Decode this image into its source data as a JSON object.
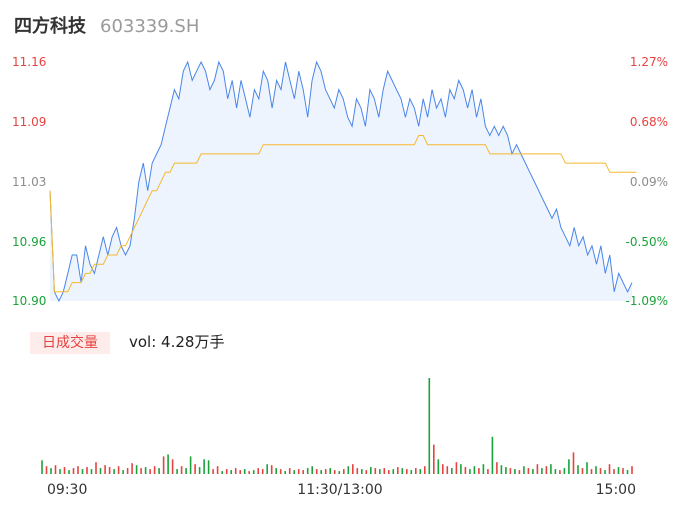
{
  "header": {
    "name": "四方科技",
    "code": "603339.SH"
  },
  "volume_panel": {
    "tag": "日成交量",
    "summary": "vol: 4.28万手"
  },
  "colors": {
    "price": "#4a86e8",
    "avg": "#f5b82e",
    "up": "#e64340",
    "down": "#1aa33a",
    "flat": "#8c8c8c"
  },
  "chart_data": {
    "type": "line",
    "x_ticks": [
      "09:30",
      "11:30/13:00",
      "15:00"
    ],
    "price_axis": {
      "ticks": [
        "11.16",
        "11.09",
        "11.03",
        "10.96",
        "10.90"
      ],
      "ylim": [
        10.9,
        11.16
      ]
    },
    "pct_axis": {
      "ticks": [
        "1.27%",
        "0.68%",
        "0.09%",
        "-0.50%",
        "-1.09%"
      ]
    },
    "series": [
      {
        "values": [
          11.02,
          10.91,
          10.9,
          10.91,
          10.93,
          10.95,
          10.95,
          10.92,
          10.96,
          10.94,
          10.93,
          10.95,
          10.97,
          10.95,
          10.97,
          10.98,
          10.96,
          10.95,
          10.96,
          10.99,
          11.03,
          11.05,
          11.02,
          11.05,
          11.06,
          11.07,
          11.09,
          11.11,
          11.13,
          11.12,
          11.15,
          11.16,
          11.14,
          11.15,
          11.16,
          11.15,
          11.13,
          11.14,
          11.16,
          11.15,
          11.12,
          11.14,
          11.11,
          11.14,
          11.12,
          11.1,
          11.13,
          11.12,
          11.15,
          11.14,
          11.11,
          11.14,
          11.13,
          11.16,
          11.14,
          11.12,
          11.15,
          11.13,
          11.1,
          11.14,
          11.16,
          11.15,
          11.13,
          11.12,
          11.11,
          11.13,
          11.12,
          11.1,
          11.09,
          11.12,
          11.11,
          11.09,
          11.13,
          11.12,
          11.1,
          11.13,
          11.15,
          11.14,
          11.13,
          11.12,
          11.1,
          11.12,
          11.11,
          11.09,
          11.12,
          11.1,
          11.13,
          11.11,
          11.12,
          11.1,
          11.13,
          11.12,
          11.14,
          11.13,
          11.11,
          11.13,
          11.1,
          11.12,
          11.09,
          11.08,
          11.09,
          11.08,
          11.09,
          11.08,
          11.06,
          11.07,
          11.06,
          11.05,
          11.04,
          11.03,
          11.02,
          11.01,
          11.0,
          10.99,
          11.0,
          10.98,
          10.97,
          10.96,
          10.98,
          10.96,
          10.97,
          10.95,
          10.96,
          10.94,
          10.96,
          10.93,
          10.95,
          10.91,
          10.93,
          10.92,
          10.91,
          10.92
        ],
        "name": ""
      },
      {
        "values": [
          11.02,
          10.91,
          10.91,
          10.91,
          10.91,
          10.92,
          10.92,
          10.92,
          10.93,
          10.93,
          10.94,
          10.94,
          10.94,
          10.95,
          10.95,
          10.95,
          10.96,
          10.96,
          10.97,
          10.98,
          10.99,
          11.0,
          11.01,
          11.02,
          11.02,
          11.03,
          11.04,
          11.04,
          11.05,
          11.05,
          11.05,
          11.05,
          11.05,
          11.05,
          11.06,
          11.06,
          11.06,
          11.06,
          11.06,
          11.06,
          11.06,
          11.06,
          11.06,
          11.06,
          11.06,
          11.06,
          11.06,
          11.06,
          11.07,
          11.07,
          11.07,
          11.07,
          11.07,
          11.07,
          11.07,
          11.07,
          11.07,
          11.07,
          11.07,
          11.07,
          11.07,
          11.07,
          11.07,
          11.07,
          11.07,
          11.07,
          11.07,
          11.07,
          11.07,
          11.07,
          11.07,
          11.07,
          11.07,
          11.07,
          11.07,
          11.07,
          11.07,
          11.07,
          11.07,
          11.07,
          11.07,
          11.07,
          11.07,
          11.08,
          11.08,
          11.07,
          11.07,
          11.07,
          11.07,
          11.07,
          11.07,
          11.07,
          11.07,
          11.07,
          11.07,
          11.07,
          11.07,
          11.07,
          11.07,
          11.06,
          11.06,
          11.06,
          11.06,
          11.06,
          11.06,
          11.06,
          11.06,
          11.06,
          11.06,
          11.06,
          11.06,
          11.06,
          11.06,
          11.06,
          11.06,
          11.06,
          11.05,
          11.05,
          11.05,
          11.05,
          11.05,
          11.05,
          11.05,
          11.05,
          11.05,
          11.05,
          11.04,
          11.04,
          11.04,
          11.04,
          11.04,
          11.04,
          11.04
        ],
        "name": ""
      }
    ],
    "volume": [
      14,
      8,
      6,
      9,
      5,
      7,
      4,
      6,
      8,
      5,
      7,
      5,
      12,
      6,
      9,
      7,
      5,
      8,
      4,
      6,
      11,
      9,
      6,
      7,
      5,
      8,
      6,
      18,
      20,
      15,
      5,
      8,
      6,
      18,
      10,
      7,
      15,
      14,
      5,
      8,
      3,
      5,
      4,
      6,
      4,
      5,
      3,
      4,
      6,
      5,
      10,
      9,
      6,
      5,
      3,
      6,
      4,
      5,
      4,
      6,
      8,
      5,
      4,
      5,
      6,
      4,
      3,
      5,
      8,
      10,
      6,
      5,
      4,
      7,
      6,
      5,
      6,
      4,
      5,
      7,
      6,
      5,
      4,
      6,
      5,
      8,
      98,
      30,
      15,
      10,
      8,
      6,
      12,
      10,
      7,
      5,
      8,
      6,
      10,
      5,
      38,
      12,
      9,
      7,
      6,
      5,
      4,
      8,
      6,
      5,
      10,
      6,
      8,
      10,
      5,
      4,
      6,
      15,
      22,
      9,
      6,
      12,
      5,
      8,
      6,
      4,
      10,
      5,
      7,
      6,
      4,
      8
    ],
    "volume_colors": [
      "g",
      "r",
      "g",
      "r",
      "g",
      "r",
      "g",
      "r",
      "r",
      "g",
      "r",
      "g",
      "r",
      "g",
      "r",
      "r",
      "g",
      "r",
      "g",
      "r",
      "r",
      "g",
      "r",
      "g",
      "r",
      "r",
      "g",
      "r",
      "g",
      "r",
      "g",
      "r",
      "g",
      "g",
      "r",
      "g",
      "g",
      "g",
      "r",
      "r",
      "g",
      "r",
      "g",
      "r",
      "r",
      "g",
      "r",
      "g",
      "r",
      "r",
      "g",
      "r",
      "g",
      "r",
      "g",
      "r",
      "g",
      "r",
      "r",
      "g",
      "g",
      "r",
      "g",
      "r",
      "g",
      "r",
      "g",
      "r",
      "g",
      "r",
      "r",
      "g",
      "r",
      "g",
      "r",
      "g",
      "r",
      "r",
      "g",
      "r",
      "g",
      "r",
      "g",
      "r",
      "g",
      "r",
      "g",
      "r",
      "g",
      "r",
      "r",
      "g",
      "r",
      "g",
      "r",
      "g",
      "g",
      "r",
      "g",
      "r",
      "g",
      "r",
      "g",
      "g",
      "r",
      "g",
      "r",
      "g",
      "r",
      "g",
      "r",
      "g",
      "r",
      "g",
      "g",
      "r",
      "g",
      "g",
      "r",
      "g",
      "r",
      "g",
      "r",
      "g",
      "r",
      "g",
      "r",
      "r",
      "g",
      "r",
      "g",
      "r"
    ]
  }
}
